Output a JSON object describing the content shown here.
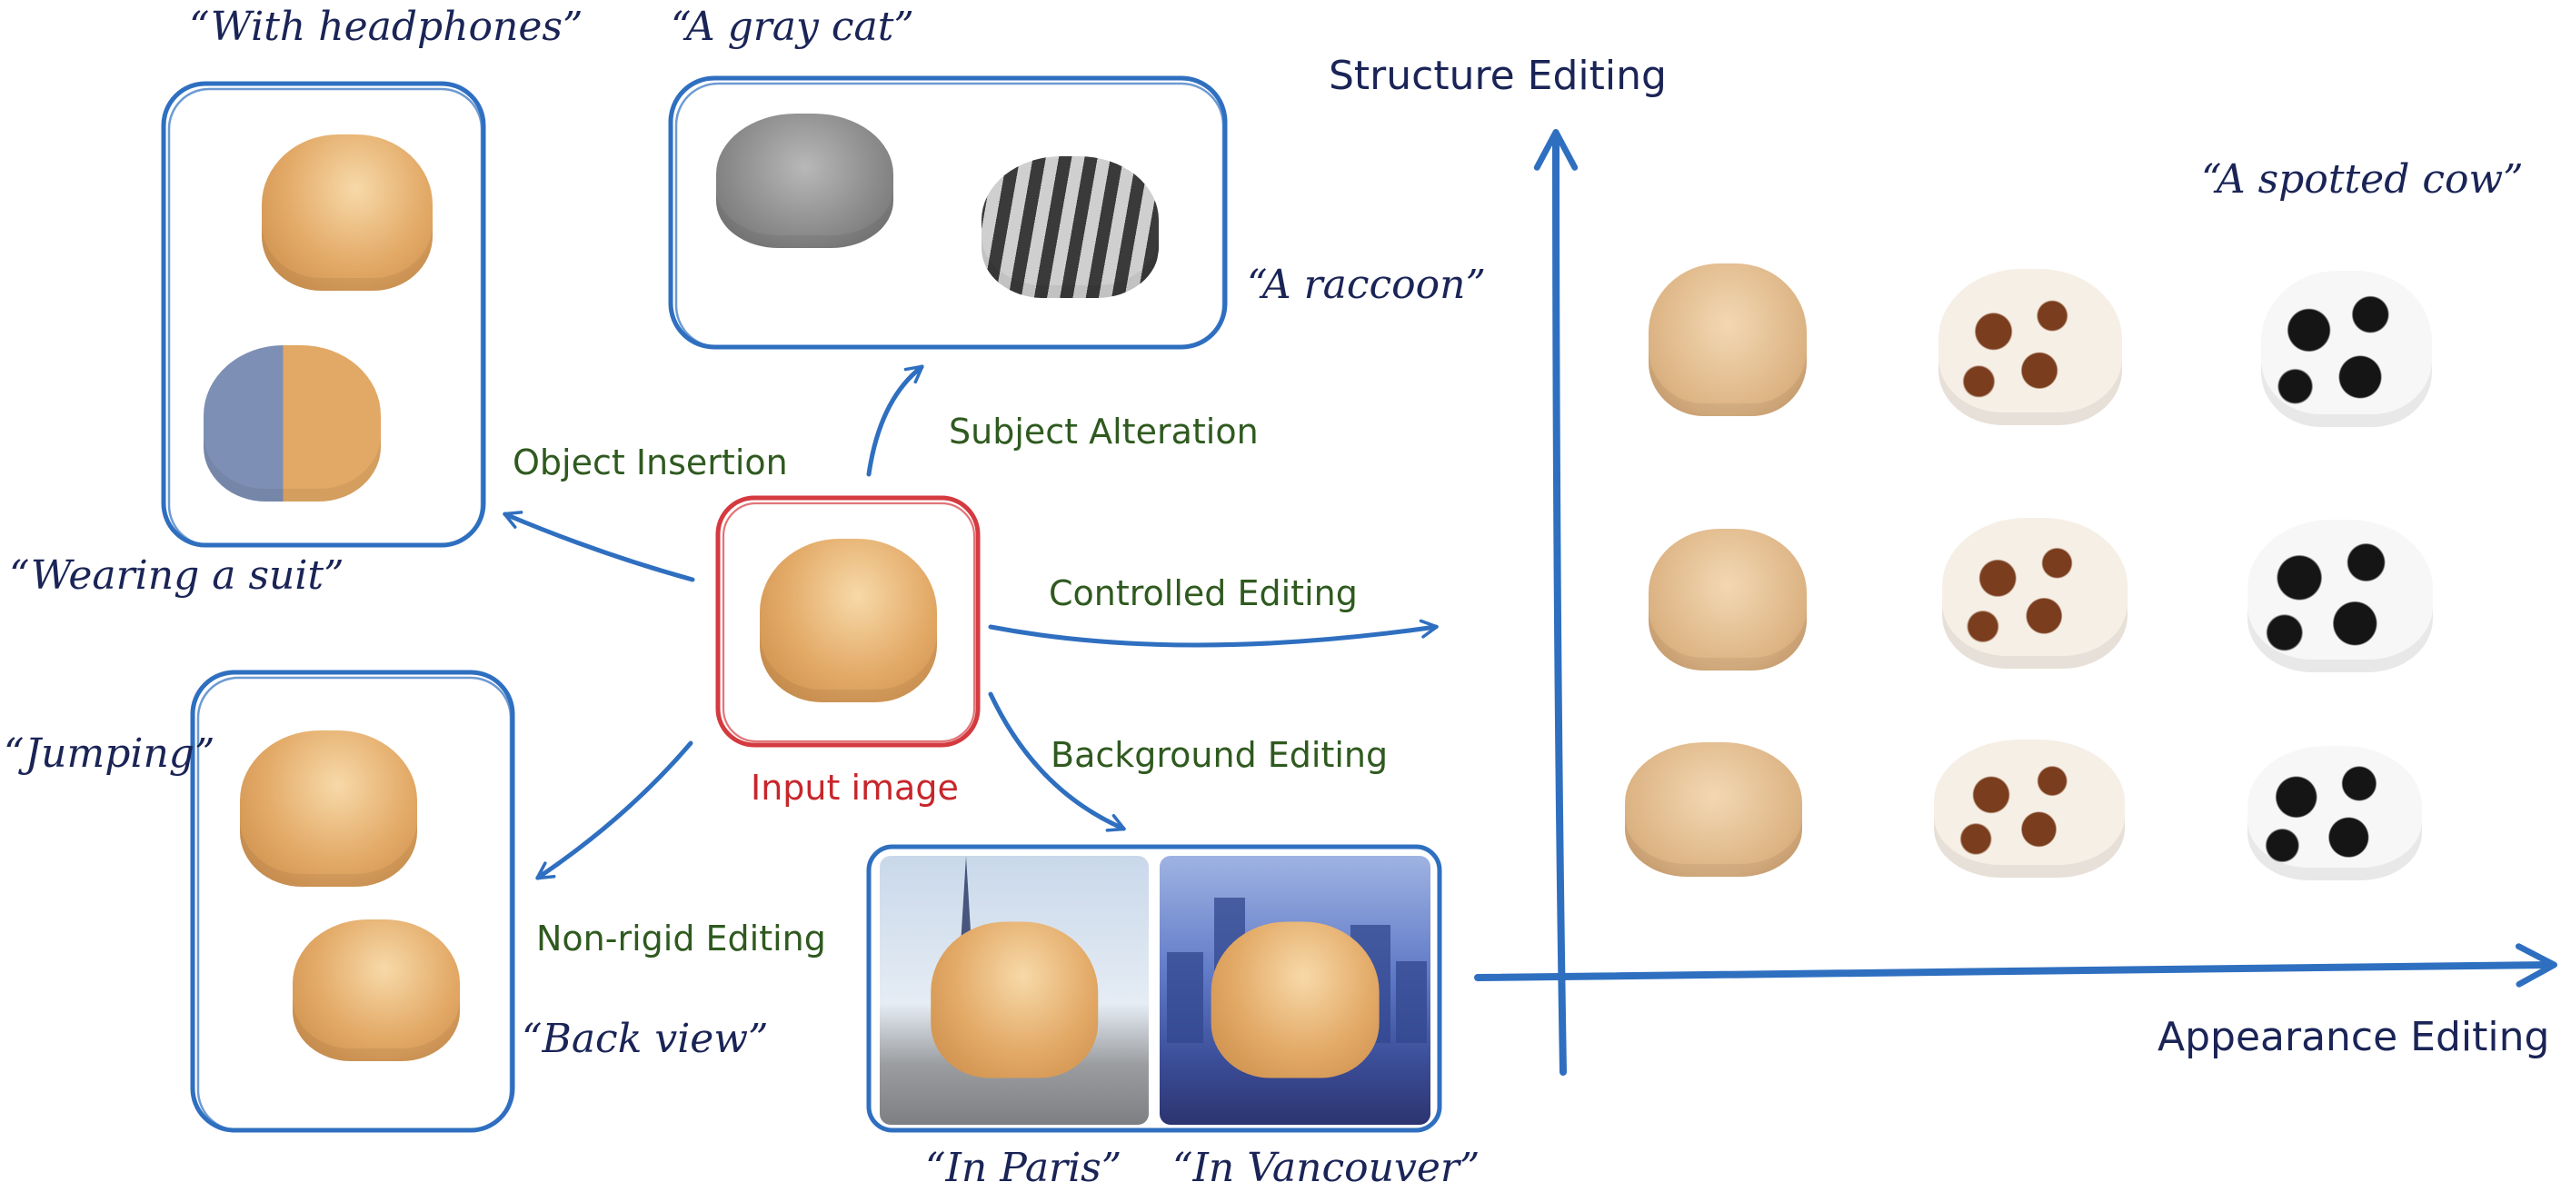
{
  "input": {
    "label": "Input image"
  },
  "operations": {
    "object_insertion": "Object Insertion",
    "subject_alteration": "Subject Alteration",
    "controlled_editing": "Controlled Editing",
    "background_editing": "Background Editing",
    "non_rigid_editing": "Non-rigid Editing"
  },
  "prompts": {
    "with_headphones": "“With headphones”",
    "wearing_suit": "“Wearing a suit”",
    "gray_cat": "“A gray cat”",
    "raccoon": "“A raccoon”",
    "jumping": "“Jumping”",
    "back_view": "“Back view”",
    "in_paris": "“In Paris”",
    "in_vancouver": "“In Vancouver”",
    "spotted_cow": "“A spotted cow”"
  },
  "axes": {
    "y_label": "Structure Editing",
    "x_label": "Appearance Editing"
  },
  "colors": {
    "blue_ink": "#2f6fc0",
    "red_ink": "#d43a3f",
    "green_text": "#2f5a1f",
    "navy_text": "#1a2456"
  }
}
